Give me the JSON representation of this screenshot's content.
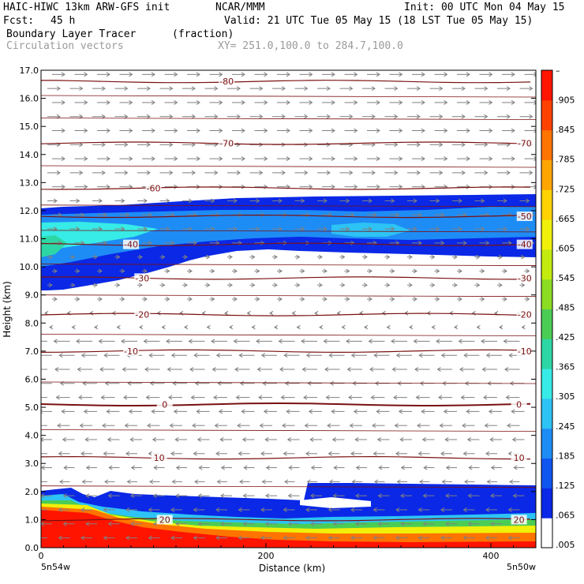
{
  "header": {
    "model": "HAIC-HIWC 13km ARW-GFS init",
    "org": "NCAR/MMM",
    "init": "Init: 00 UTC Mon 04 May 15",
    "fcst_label": "Fcst:",
    "fcst_value": "45 h",
    "valid": "Valid: 21 UTC Tue 05 May 15 (18 LST Tue 05 May 15)",
    "field": "Boundary Layer Tracer",
    "units": "(fraction)",
    "vectors": "Circulation vectors",
    "xy": "XY= 251.0,100.0 to 284.7,100.0"
  },
  "colors": {
    "contour": "#7a1010",
    "vector": "#808080",
    "scale": [
      "#ffffff",
      "#0a28e6",
      "#0f55f0",
      "#1e8cf5",
      "#2dc3f5",
      "#37ebe6",
      "#2dd7a5",
      "#4bcd55",
      "#8cdc23",
      "#c3eb0f",
      "#f0f00a",
      "#ffd200",
      "#ffa500",
      "#ff7300",
      "#ff4100",
      "#ff1400"
    ]
  },
  "chart_data": {
    "type": "contour",
    "xlabel": "Distance (km)",
    "ylabel": "Height (km)",
    "xlim": [
      0,
      440
    ],
    "ylim": [
      0,
      17
    ],
    "x_ticks": [
      "0",
      "200",
      "400"
    ],
    "y_ticks": [
      "0.0",
      "1.0",
      "2.0",
      "3.0",
      "4.0",
      "5.0",
      "6.0",
      "7.0",
      "8.0",
      "9.0",
      "10.0",
      "11.0",
      "12.0",
      "13.0",
      "14.0",
      "15.0",
      "16.0",
      "17.0"
    ],
    "x_endpoints": [
      "5n54w",
      "5n50w"
    ],
    "colorbar_labels": [
      "–",
      ".905",
      ".845",
      ".785",
      ".725",
      ".665",
      ".605",
      ".545",
      ".485",
      ".425",
      ".365",
      ".305",
      ".245",
      ".185",
      ".125",
      ".065",
      ".005"
    ],
    "temperature_contours": [
      {
        "label": "-80",
        "height_km": 16.6
      },
      {
        "label": "-70",
        "height_km": 14.4
      },
      {
        "label": "-60",
        "height_km": 12.8
      },
      {
        "label": "-50",
        "height_km": 11.8
      },
      {
        "label": "-40",
        "height_km": 10.8
      },
      {
        "label": "-30",
        "height_km": 9.6
      },
      {
        "label": "-20",
        "height_km": 8.3
      },
      {
        "label": "-10",
        "height_km": 7.0
      },
      {
        "label": "0",
        "height_km": 5.1
      },
      {
        "label": "10",
        "height_km": 3.2
      },
      {
        "label": "20",
        "height_km": 1.0
      }
    ],
    "contour_label_positions_km": [
      {
        "label": "-80",
        "x": 165
      },
      {
        "label": "-70",
        "x": 165
      },
      {
        "label": "-70",
        "x": 430
      },
      {
        "label": "-60",
        "x": 100
      },
      {
        "label": "-50",
        "x": 430
      },
      {
        "label": "-40",
        "x": 80
      },
      {
        "label": "-40",
        "x": 430
      },
      {
        "label": "-30",
        "x": 90
      },
      {
        "label": "-30",
        "x": 430
      },
      {
        "label": "-20",
        "x": 90
      },
      {
        "label": "-20",
        "x": 430
      },
      {
        "label": "-10",
        "x": 80
      },
      {
        "label": "-10",
        "x": 430
      },
      {
        "label": "0",
        "x": 110
      },
      {
        "label": "0",
        "x": 425
      },
      {
        "label": "10",
        "x": 105
      },
      {
        "label": "10",
        "x": 425
      },
      {
        "label": "20",
        "x": 110
      },
      {
        "label": "20",
        "x": 425
      }
    ]
  }
}
